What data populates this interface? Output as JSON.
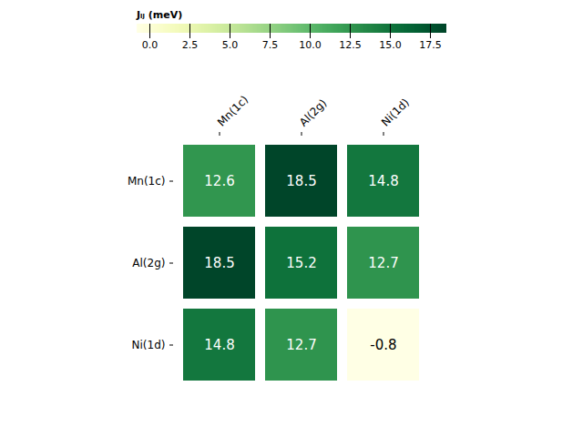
{
  "chart_data": {
    "type": "heatmap",
    "categories": [
      "Mn(1c)",
      "Al(2g)",
      "Ni(1d)"
    ],
    "matrix": [
      [
        12.6,
        18.5,
        14.8
      ],
      [
        18.5,
        15.2,
        12.7
      ],
      [
        14.8,
        12.7,
        -0.8
      ]
    ],
    "color": "YlGn",
    "color_range": [
      -0.8,
      18.5
    ],
    "colorbar_ticks": [
      {
        "value": 0.0,
        "label": "0.0"
      },
      2.5,
      {
        "value": 5.0,
        "label": "5.0"
      },
      7.5,
      {
        "value": 10.0,
        "label": "10.0"
      },
      12.5,
      {
        "value": 15.0,
        "label": "15.0"
      },
      17.5
    ],
    "colorbar_label": "Jᵢⱼ (meV)",
    "data_labels": true
  }
}
